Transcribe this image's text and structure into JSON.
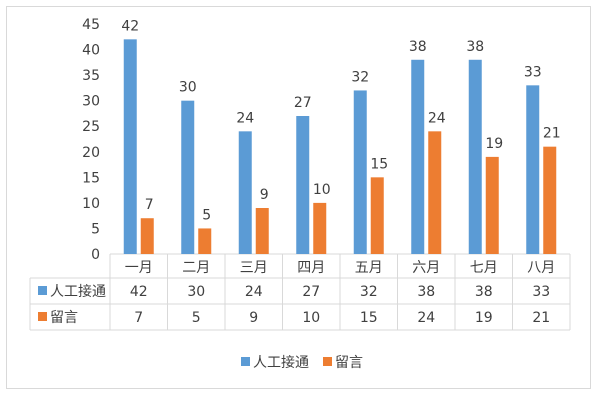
{
  "chart_data": {
    "type": "bar",
    "categories": [
      "一月",
      "二月",
      "三月",
      "四月",
      "五月",
      "六月",
      "七月",
      "八月"
    ],
    "series": [
      {
        "name": "人工接通",
        "values": [
          42,
          30,
          24,
          27,
          32,
          38,
          38,
          33
        ],
        "color": "#5b9bd5"
      },
      {
        "name": "留言",
        "values": [
          7,
          5,
          9,
          10,
          15,
          24,
          19,
          21
        ],
        "color": "#ed7d31"
      }
    ],
    "ylim": [
      0,
      45
    ],
    "yticks": [
      0,
      5,
      10,
      15,
      20,
      25,
      30,
      35,
      40,
      45
    ],
    "grid": false,
    "data_table": true,
    "legend": "bottom",
    "title": "",
    "xlabel": "",
    "ylabel": ""
  }
}
